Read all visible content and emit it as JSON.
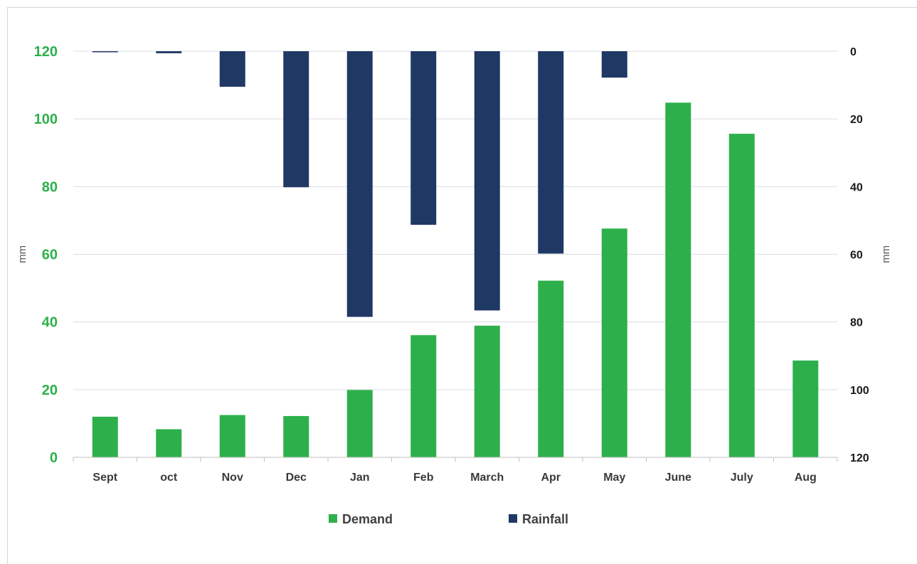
{
  "chart_data": {
    "type": "bar",
    "categories": [
      "Sept",
      "oct",
      "Nov",
      "Dec",
      "Jan",
      "Feb",
      "March",
      "Apr",
      "May",
      "June",
      "July",
      "Aug"
    ],
    "series": [
      {
        "name": "Demand",
        "axis": "left",
        "direction": "up",
        "color": "#2db04b",
        "values": [
          12,
          8.3,
          12.5,
          12.2,
          19.9,
          36.1,
          38.9,
          52.2,
          67.6,
          104.8,
          95.6,
          28.6
        ]
      },
      {
        "name": "Rainfall",
        "axis": "right",
        "direction": "down",
        "color": "#203864",
        "values": [
          0.3,
          0.6,
          10.5,
          40.2,
          78.5,
          51.3,
          76.6,
          59.8,
          7.8,
          0,
          0,
          0
        ]
      }
    ],
    "y_left": {
      "label": "mm",
      "min": 0,
      "max": 120,
      "ticks": [
        0,
        20,
        40,
        60,
        80,
        100,
        120
      ],
      "tick_color": "#2db04b"
    },
    "y_right": {
      "label": "mm",
      "min": 0,
      "max": 120,
      "ticks": [
        0,
        20,
        40,
        60,
        80,
        100,
        120
      ],
      "reversed": true
    },
    "grid": true,
    "legend": {
      "position": "bottom",
      "items": [
        "Demand",
        "Rainfall"
      ]
    },
    "title": ""
  }
}
